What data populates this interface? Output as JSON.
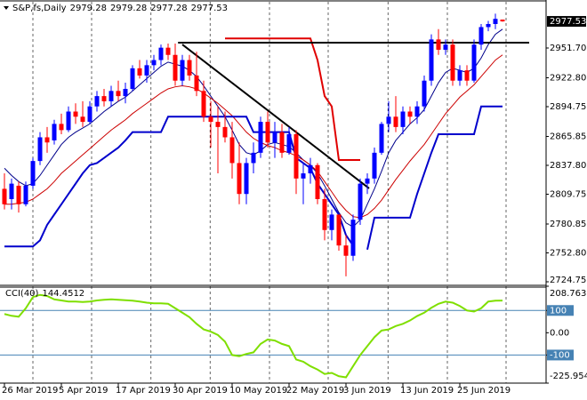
{
  "chart_data": [
    {
      "type": "candlestick",
      "title": "S&P,fs,Daily",
      "categories": [
        "26 Mar 2019",
        null,
        null,
        null,
        null,
        null,
        null,
        null,
        "5 Apr 2019",
        null,
        null,
        null,
        null,
        null,
        null,
        null,
        "17 Apr 2019",
        null,
        null,
        null,
        null,
        null,
        null,
        null,
        "30 Apr 2019",
        null,
        null,
        null,
        null,
        null,
        null,
        null,
        "10 May 2019",
        null,
        null,
        null,
        null,
        null,
        null,
        null,
        "22 May 2019",
        null,
        null,
        null,
        null,
        null,
        null,
        null,
        "3 Jun 2019",
        null,
        null,
        null,
        null,
        null,
        null,
        null,
        "13 Jun 2019",
        null,
        null,
        null,
        null,
        null,
        null,
        null,
        "25 Jun 2019",
        null,
        null,
        null,
        null,
        null,
        null
      ],
      "open": [
        2815,
        2805,
        2818,
        2800,
        2818,
        2842,
        2865,
        2862,
        2878,
        2872,
        2890,
        2885,
        2880,
        2895,
        2905,
        2900,
        2910,
        2905,
        2912,
        2932,
        2925,
        2935,
        2940,
        2952,
        2945,
        2920,
        2940,
        2925,
        2910,
        2885,
        2880,
        2875,
        2865,
        2840,
        2810,
        2840,
        2850,
        2880,
        2860,
        2870,
        2850,
        2868,
        2825,
        2830,
        2838,
        2805,
        2775,
        2790,
        2760,
        2750,
        2785,
        2820,
        2825,
        2850,
        2878,
        2885,
        2875,
        2890,
        2885,
        2895,
        2920,
        2960,
        2950,
        2955,
        2920,
        2930,
        2920,
        2955,
        2972,
        2975,
        2979.28
      ],
      "high": [
        2830,
        2825,
        2822,
        2822,
        2845,
        2870,
        2875,
        2882,
        2888,
        2895,
        2898,
        2900,
        2900,
        2910,
        2912,
        2915,
        2920,
        2918,
        2935,
        2940,
        2940,
        2945,
        2955,
        2956,
        2956,
        2945,
        2945,
        2948,
        2920,
        2900,
        2895,
        2890,
        2880,
        2860,
        2845,
        2860,
        2885,
        2890,
        2880,
        2878,
        2875,
        2872,
        2840,
        2845,
        2840,
        2815,
        2795,
        2790,
        2770,
        2790,
        2825,
        2830,
        2855,
        2880,
        2900,
        2905,
        2895,
        2895,
        2900,
        2925,
        2965,
        2970,
        2960,
        2960,
        2935,
        2935,
        2960,
        2975,
        2978,
        2985,
        2979.28
      ],
      "low": [
        2795,
        2795,
        2792,
        2798,
        2815,
        2838,
        2850,
        2858,
        2868,
        2870,
        2878,
        2875,
        2878,
        2890,
        2895,
        2895,
        2900,
        2898,
        2910,
        2922,
        2918,
        2930,
        2935,
        2940,
        2915,
        2915,
        2920,
        2905,
        2880,
        2855,
        2830,
        2860,
        2825,
        2800,
        2800,
        2830,
        2845,
        2855,
        2845,
        2845,
        2848,
        2810,
        2800,
        2820,
        2800,
        2765,
        2765,
        2755,
        2730,
        2745,
        2780,
        2810,
        2820,
        2848,
        2870,
        2870,
        2868,
        2878,
        2878,
        2890,
        2915,
        2945,
        2945,
        2915,
        2915,
        2915,
        2918,
        2950,
        2968,
        2970,
        2977.28
      ],
      "close": [
        2800,
        2820,
        2800,
        2818,
        2842,
        2865,
        2860,
        2878,
        2872,
        2890,
        2885,
        2880,
        2895,
        2905,
        2900,
        2910,
        2905,
        2912,
        2932,
        2925,
        2935,
        2940,
        2952,
        2945,
        2920,
        2940,
        2925,
        2910,
        2885,
        2880,
        2875,
        2865,
        2840,
        2810,
        2840,
        2850,
        2880,
        2860,
        2870,
        2850,
        2868,
        2825,
        2830,
        2838,
        2805,
        2775,
        2790,
        2760,
        2750,
        2785,
        2820,
        2825,
        2850,
        2878,
        2885,
        2875,
        2890,
        2885,
        2895,
        2920,
        2960,
        2950,
        2955,
        2920,
        2930,
        2920,
        2955,
        2972,
        2975,
        2980,
        2977.53
      ],
      "up_color": "#0000ff",
      "down_color": "#ff0000",
      "overlays": [
        {
          "color": "#00008b",
          "width": 1,
          "values": [
            2835,
            2828,
            2822,
            2818,
            2820,
            2828,
            2838,
            2848,
            2858,
            2865,
            2870,
            2874,
            2878,
            2884,
            2890,
            2895,
            2900,
            2904,
            2910,
            2916,
            2922,
            2928,
            2934,
            2938,
            2936,
            2934,
            2930,
            2924,
            2915,
            2905,
            2895,
            2885,
            2872,
            2858,
            2850,
            2848,
            2852,
            2858,
            2860,
            2858,
            2856,
            2850,
            2843,
            2838,
            2830,
            2818,
            2805,
            2792,
            2782,
            2778,
            2785,
            2800,
            2815,
            2832,
            2850,
            2862,
            2870,
            2878,
            2884,
            2892,
            2905,
            2918,
            2928,
            2932,
            2930,
            2928,
            2932,
            2942,
            2955,
            2965,
            2970
          ]
        },
        {
          "color": "#cc0000",
          "width": 1,
          "values": [
            2800,
            2800,
            2801,
            2802,
            2805,
            2810,
            2815,
            2822,
            2830,
            2836,
            2842,
            2848,
            2854,
            2860,
            2866,
            2872,
            2877,
            2882,
            2888,
            2893,
            2898,
            2903,
            2908,
            2912,
            2914,
            2915,
            2914,
            2912,
            2908,
            2903,
            2898,
            2892,
            2886,
            2878,
            2870,
            2864,
            2860,
            2857,
            2855,
            2852,
            2850,
            2847,
            2843,
            2838,
            2832,
            2822,
            2812,
            2802,
            2794,
            2788,
            2787,
            2790,
            2796,
            2804,
            2814,
            2824,
            2833,
            2842,
            2850,
            2858,
            2868,
            2878,
            2888,
            2896,
            2904,
            2910,
            2916,
            2924,
            2932,
            2940,
            2945
          ]
        },
        {
          "color": "#0000cc",
          "width": 2,
          "values": [
            2759,
            2759,
            2759,
            2759,
            2759,
            2765,
            2780,
            2790,
            2800,
            2810,
            2820,
            2830,
            2838,
            2840,
            2845,
            2850,
            2855,
            2862,
            2870,
            2870,
            2870,
            2870,
            2870,
            2885,
            2885,
            2885,
            2885,
            2885,
            2885,
            2885,
            2885,
            2885,
            2885,
            2885,
            2885,
            2870,
            2870,
            2870,
            2870,
            2870,
            2870,
            2845,
            2840,
            2835,
            2820,
            2810,
            2800,
            2790,
            2770,
            2760,
            null,
            2756,
            2787,
            2787,
            2787,
            2787,
            2787,
            2787,
            2810,
            2830,
            2850,
            2868,
            2868,
            2868,
            2868,
            2868,
            2868,
            2895,
            2895,
            2895,
            2895
          ]
        },
        {
          "color": "#e00000",
          "width": 2,
          "values": [
            null,
            null,
            null,
            null,
            null,
            null,
            null,
            null,
            null,
            null,
            null,
            null,
            null,
            null,
            null,
            null,
            null,
            null,
            null,
            null,
            null,
            null,
            null,
            null,
            null,
            null,
            null,
            null,
            null,
            null,
            null,
            2961,
            2961,
            2961,
            2961,
            2961,
            2961,
            2961,
            2961,
            2961,
            2961,
            2961,
            2961,
            2961,
            2940,
            2905,
            2895,
            2843,
            2843,
            2843,
            2843,
            null,
            null,
            null,
            null,
            null,
            null,
            null,
            null,
            null,
            null,
            null,
            null,
            null,
            null,
            null,
            null,
            null,
            null,
            null,
            null
          ]
        }
      ],
      "drawings": [
        {
          "color": "#000000",
          "x": [
            24.4,
            73.75
          ],
          "y": [
            2956.9,
            2956.9
          ]
        },
        {
          "color": "#000000",
          "x": [
            25,
            51.25
          ],
          "y": [
            2955.1,
            2815.4
          ]
        }
      ],
      "xlim": [
        -0.625,
        76.125
      ],
      "xticks": [
        4,
        12.25,
        20.6,
        28.9,
        37.25,
        45.5,
        53.9,
        62.25,
        70.5
      ],
      "ylim": [
        2722.16,
        2996.57
      ],
      "yticks": [
        {
          "value": 2951.7,
          "label": "2951.70"
        },
        {
          "value": 2922.8,
          "label": "2922.80"
        },
        2894.75,
        2865.85,
        {
          "value": 2837.8,
          "label": "2837.80"
        },
        2809.75,
        2780.85,
        {
          "value": 2752.8,
          "label": "2752.80"
        },
        2724.75
      ]
    },
    {
      "type": "line",
      "title": "CCI(40)",
      "color": "#7fdf00",
      "values": [
        84,
        76,
        72,
        110,
        160,
        170,
        165,
        150,
        145,
        140,
        140,
        138,
        140,
        145,
        148,
        150,
        148,
        146,
        144,
        140,
        135,
        132,
        132,
        130,
        110,
        90,
        70,
        40,
        15,
        5,
        -10,
        -40,
        -100,
        -105,
        -95,
        -88,
        -50,
        -30,
        -35,
        -50,
        -60,
        -120,
        -130,
        -150,
        -165,
        -185,
        -180,
        -195,
        -200,
        -150,
        -100,
        -60,
        -20,
        10,
        15,
        30,
        40,
        55,
        75,
        90,
        112,
        130,
        140,
        135,
        120,
        100,
        95,
        110,
        140,
        144,
        144.4512
      ],
      "ylim": [
        -225.9549,
        208.7637
      ],
      "yticks": [
        208.7637,
        100,
        {
          "value": 0,
          "label": "0.00"
        },
        -100,
        -225.9549
      ],
      "levels": [
        100,
        -100
      ],
      "level_color": "#4682b4"
    }
  ]
}
